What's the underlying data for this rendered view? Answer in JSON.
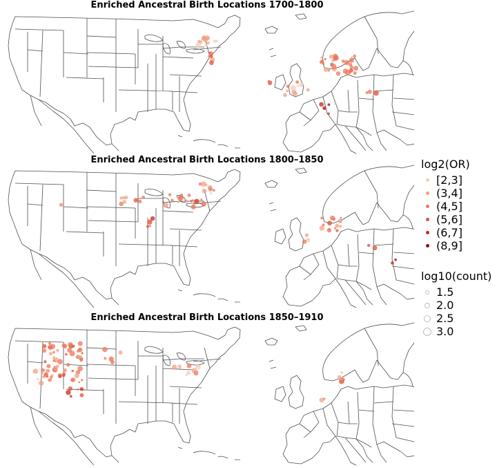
{
  "panels": [
    {
      "title": "Enriched Ancestral Birth Locations 1700–1800"
    },
    {
      "title": "Enriched Ancestral Birth Locations 1800–1850"
    },
    {
      "title": "Enriched Ancestral Birth Locations 1850–1910"
    }
  ],
  "legend": {
    "or_title": "log2(OR)",
    "or_items": [
      {
        "label": "[2,3]",
        "color": "#f6cbb4"
      },
      {
        "label": "(3,4]",
        "color": "#f1a187"
      },
      {
        "label": "(4,5]",
        "color": "#e9775c"
      },
      {
        "label": "(5,6]",
        "color": "#dc5036"
      },
      {
        "label": "(6,7]",
        "color": "#c32a1f"
      },
      {
        "label": "(8,9]",
        "color": "#8d0e13"
      }
    ],
    "count_title": "log10(count)",
    "count_items": [
      {
        "label": "1.5"
      },
      {
        "label": "2.0"
      },
      {
        "label": "2.5"
      },
      {
        "label": "3.0"
      }
    ]
  },
  "colors": {
    "land_line": "#4d4d4d",
    "point_palette": [
      "#f6cbb4",
      "#f1a187",
      "#e9775c",
      "#dc5036",
      "#c32a1f",
      "#8d0e13"
    ]
  }
}
